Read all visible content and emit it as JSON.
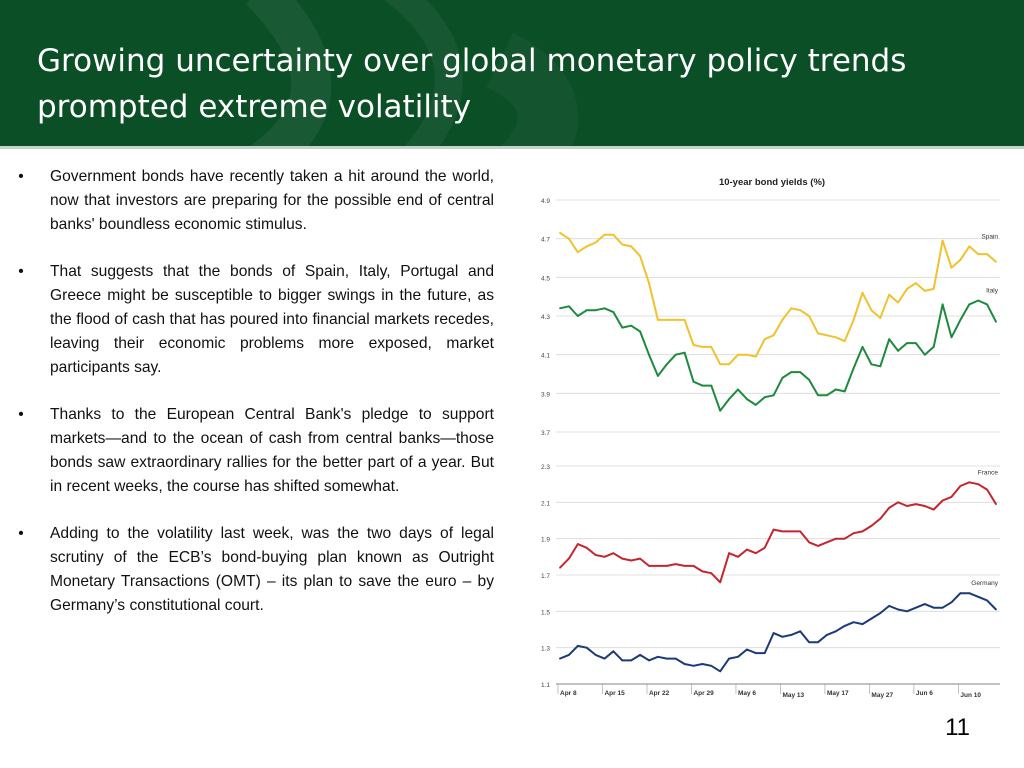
{
  "slide": {
    "title": "Growing uncertainty over global monetary policy trends prompted extreme volatility",
    "page_number": "11",
    "bullets": [
      "Government bonds have recently taken a hit around the world, now that investors are preparing for the possible end of central banks' boundless economic stimulus.",
      "That suggests that the bonds of Spain, Italy, Portugal and Greece might be susceptible to bigger swings in the future, as the flood of cash that has poured into financial markets recedes, leaving their economic problems more exposed, market participants say.",
      "Thanks to the European Central Bank's pledge to support markets—and to the ocean of cash from central banks—those bonds saw extraordinary rallies for the better part of a year. But in recent weeks, the course has shifted somewhat.",
      "Adding to the volatility last week, was the two days of legal scrutiny of the ECB’s bond-buying plan known as Outright Monetary Transactions (OMT) – its plan to save the euro – by Germany’s constitutional court."
    ],
    "bullet_marker": "•",
    "colors": {
      "header": "#0b4f27",
      "spain": "#f0c22d",
      "italy": "#1e8a3e",
      "france": "#c4262e",
      "germany": "#1c3a78"
    }
  },
  "chart_data": {
    "type": "line",
    "title": "10-year bond yields (%)",
    "x_labels": [
      "Apr 8",
      "Apr 15",
      "Apr 22",
      "Apr 29",
      "May 6",
      "May 13",
      "May 17",
      "May 27",
      "Jun 6",
      "Jun 10"
    ],
    "x_label_index": [
      0,
      5,
      10,
      15,
      20,
      25,
      30,
      35,
      40,
      45
    ],
    "panels": [
      {
        "name": "top",
        "ylim": [
          3.7,
          4.9
        ],
        "yticks": [
          "3.7",
          "3.9",
          "4.1",
          "4.3",
          "4.5",
          "4.7",
          "4.9"
        ],
        "series": [
          {
            "name": "Spain",
            "values": [
              4.73,
              4.7,
              4.63,
              4.66,
              4.68,
              4.72,
              4.72,
              4.67,
              4.66,
              4.61,
              4.47,
              4.28,
              4.28,
              4.28,
              4.28,
              4.15,
              4.14,
              4.14,
              4.05,
              4.05,
              4.1,
              4.1,
              4.09,
              4.18,
              4.2,
              4.28,
              4.34,
              4.33,
              4.3,
              4.21,
              4.2,
              4.19,
              4.17,
              4.28,
              4.42,
              4.33,
              4.29,
              4.41,
              4.37,
              4.44,
              4.47,
              4.43,
              4.44,
              4.69,
              4.55,
              4.59,
              4.66,
              4.62,
              4.62,
              4.58
            ]
          },
          {
            "name": "Italy",
            "values": [
              4.34,
              4.35,
              4.3,
              4.33,
              4.33,
              4.34,
              4.32,
              4.24,
              4.25,
              4.22,
              4.1,
              3.99,
              4.05,
              4.1,
              4.11,
              3.96,
              3.94,
              3.94,
              3.81,
              3.87,
              3.92,
              3.87,
              3.84,
              3.88,
              3.89,
              3.98,
              4.01,
              4.01,
              3.97,
              3.89,
              3.89,
              3.92,
              3.91,
              4.03,
              4.14,
              4.05,
              4.04,
              4.18,
              4.12,
              4.16,
              4.16,
              4.1,
              4.14,
              4.36,
              4.19,
              4.28,
              4.36,
              4.38,
              4.36,
              4.27
            ]
          }
        ]
      },
      {
        "name": "bottom",
        "ylim": [
          1.1,
          2.3
        ],
        "yticks": [
          "1.1",
          "1.3",
          "1.5",
          "1.7",
          "1.9",
          "2.1",
          "2.3"
        ],
        "series": [
          {
            "name": "France",
            "values": [
              1.74,
              1.79,
              1.87,
              1.85,
              1.81,
              1.8,
              1.82,
              1.79,
              1.78,
              1.79,
              1.75,
              1.75,
              1.75,
              1.76,
              1.75,
              1.75,
              1.72,
              1.71,
              1.66,
              1.82,
              1.8,
              1.84,
              1.82,
              1.85,
              1.95,
              1.94,
              1.94,
              1.94,
              1.88,
              1.86,
              1.88,
              1.9,
              1.9,
              1.93,
              1.94,
              1.97,
              2.01,
              2.07,
              2.1,
              2.08,
              2.09,
              2.08,
              2.06,
              2.11,
              2.13,
              2.19,
              2.21,
              2.2,
              2.17,
              2.09
            ]
          },
          {
            "name": "Germany",
            "values": [
              1.24,
              1.26,
              1.31,
              1.3,
              1.26,
              1.24,
              1.28,
              1.23,
              1.23,
              1.26,
              1.23,
              1.25,
              1.24,
              1.24,
              1.21,
              1.2,
              1.21,
              1.2,
              1.17,
              1.24,
              1.25,
              1.29,
              1.27,
              1.27,
              1.38,
              1.36,
              1.37,
              1.39,
              1.33,
              1.33,
              1.37,
              1.39,
              1.42,
              1.44,
              1.43,
              1.46,
              1.49,
              1.53,
              1.51,
              1.5,
              1.52,
              1.54,
              1.52,
              1.52,
              1.55,
              1.6,
              1.6,
              1.58,
              1.56,
              1.51
            ]
          }
        ]
      }
    ],
    "grid": true,
    "legend": "inline labels at right end of each line"
  }
}
